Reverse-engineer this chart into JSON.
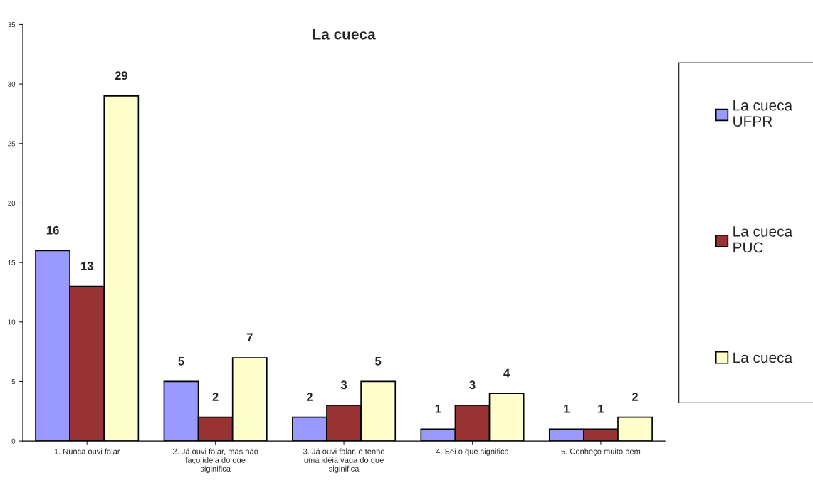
{
  "chart_data": {
    "type": "bar",
    "title": "La cueca",
    "categories": [
      "1. Nunca ouvi falar",
      "2. Já ouvi falar, mas não faço idéia do que siginifica",
      "3. Já ouvi falar, e tenho uma idéia vaga do que siginifica",
      "4. Sei o que significa",
      "5. Conheço muito bem"
    ],
    "series": [
      {
        "name": "La cueca\nUFPR",
        "color": "#9999ff",
        "values": [
          16,
          5,
          2,
          1,
          1
        ]
      },
      {
        "name": "La cueca\nPUC",
        "color": "#993333",
        "values": [
          13,
          2,
          3,
          3,
          1
        ]
      },
      {
        "name": "La cueca",
        "color": "#ffffcc",
        "values": [
          29,
          7,
          5,
          4,
          2
        ]
      }
    ],
    "ylim": [
      0,
      35
    ],
    "yticks": [
      0,
      5,
      10,
      15,
      20,
      25,
      30,
      35
    ],
    "data_labels": true,
    "grid": false,
    "legend": "right"
  }
}
